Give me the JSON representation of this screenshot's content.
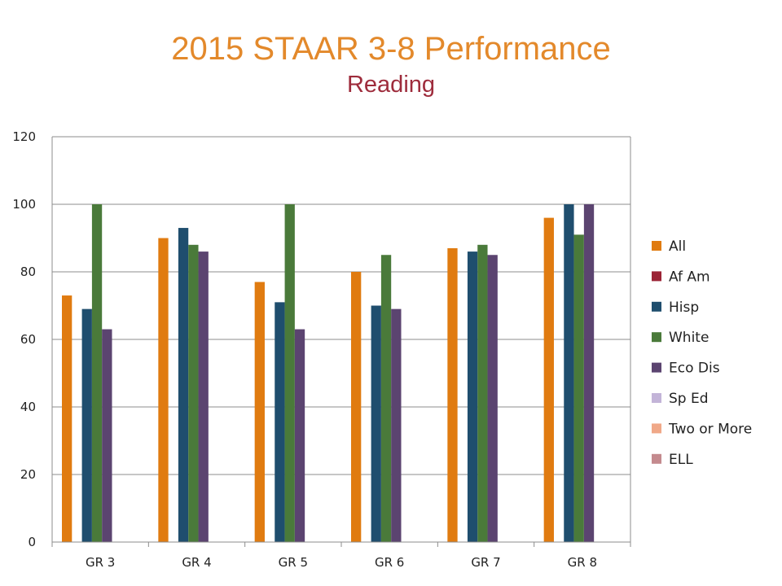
{
  "chart_data": {
    "type": "bar",
    "title": "2015 STAAR 3-8 Performance",
    "subtitle": "Reading",
    "categories": [
      "GR 3",
      "GR 4",
      "GR 5",
      "GR 6",
      "GR 7",
      "GR 8"
    ],
    "ylim": [
      0,
      120
    ],
    "yticks": [
      0,
      20,
      40,
      60,
      80,
      100,
      120
    ],
    "grid": true,
    "legend_position": "right",
    "series": [
      {
        "name": "All",
        "color": "#E07B10",
        "values": [
          73,
          90,
          77,
          80,
          87,
          96
        ]
      },
      {
        "name": "Af Am",
        "color": "#9B2335",
        "values": [
          null,
          null,
          null,
          null,
          null,
          null
        ]
      },
      {
        "name": "Hisp",
        "color": "#1F4E6E",
        "values": [
          69,
          93,
          71,
          70,
          86,
          100
        ]
      },
      {
        "name": "White",
        "color": "#4A7A3A",
        "values": [
          100,
          88,
          100,
          85,
          88,
          91
        ]
      },
      {
        "name": "Eco Dis",
        "color": "#5B4470",
        "values": [
          63,
          86,
          63,
          69,
          85,
          100
        ]
      },
      {
        "name": "Sp Ed",
        "color": "#C3B4D8",
        "values": [
          null,
          null,
          null,
          null,
          null,
          null
        ]
      },
      {
        "name": "Two or More",
        "color": "#F0A888",
        "values": [
          null,
          null,
          null,
          null,
          null,
          null
        ]
      },
      {
        "name": "ELL",
        "color": "#C48A8E",
        "values": [
          null,
          null,
          null,
          null,
          null,
          null
        ]
      }
    ]
  }
}
